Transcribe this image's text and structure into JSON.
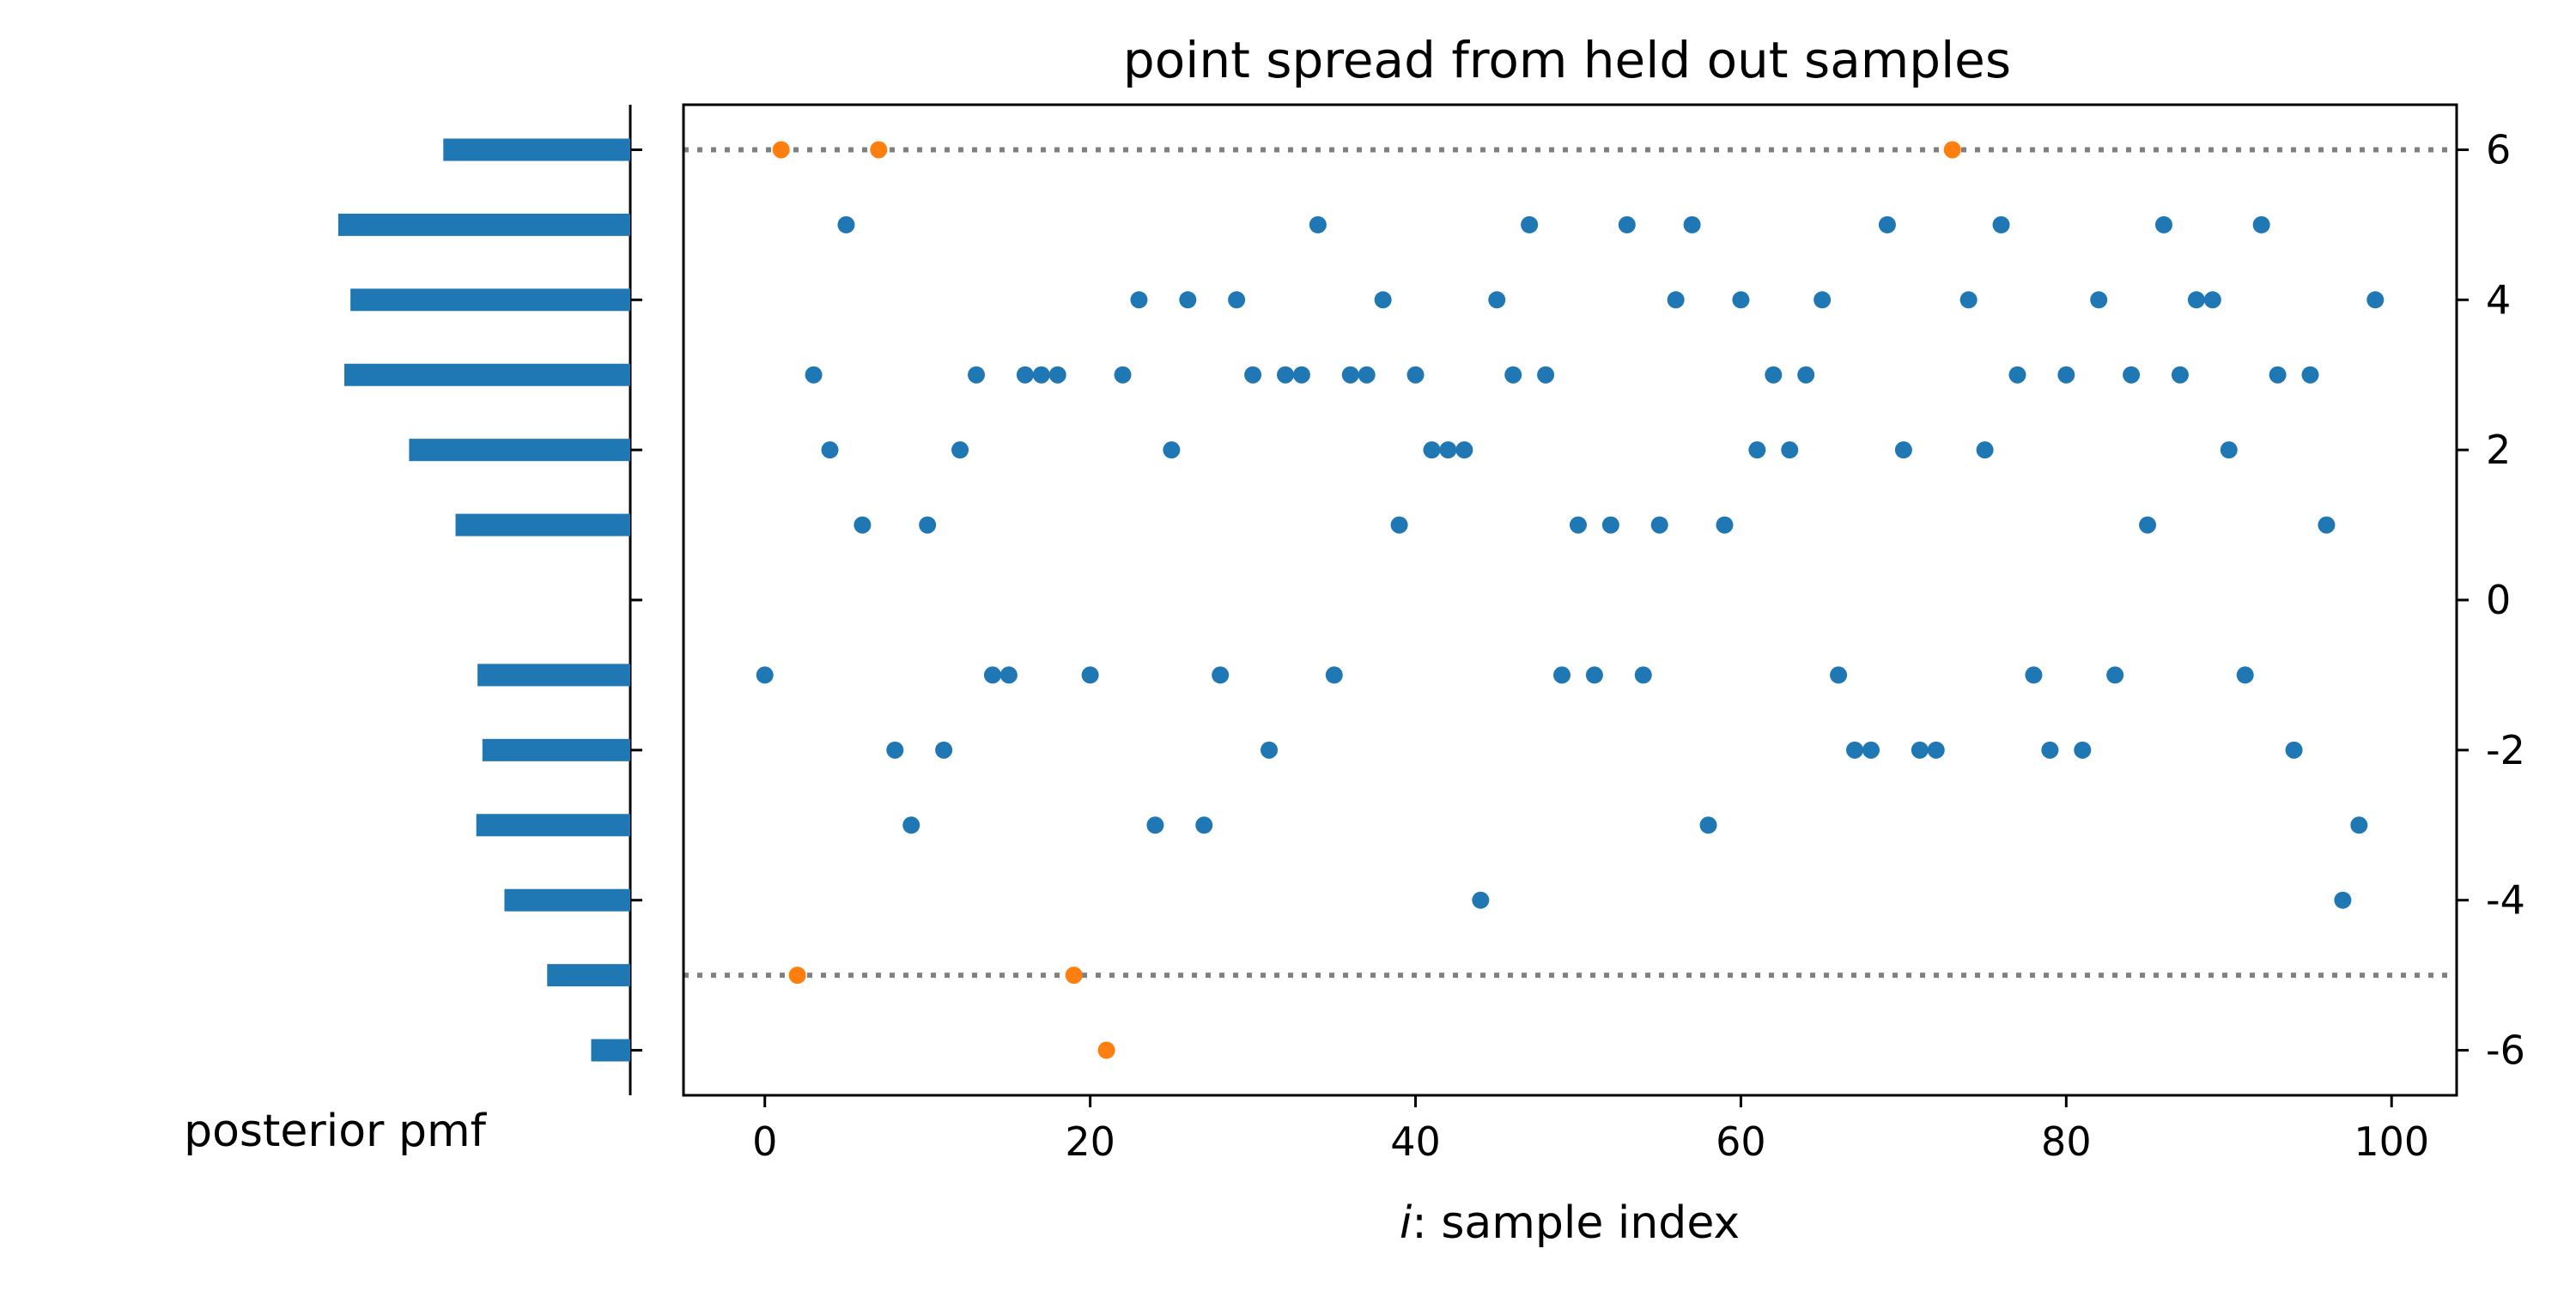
{
  "chart_data": [
    {
      "type": "bar",
      "orientation": "horizontal",
      "xlabel": "posterior pmf",
      "categories": [
        -6,
        -5,
        -4,
        -3,
        -2,
        -1,
        1,
        2,
        3,
        4,
        5,
        6
      ],
      "values": [
        0.032,
        0.068,
        0.103,
        0.126,
        0.121,
        0.125,
        0.143,
        0.181,
        0.234,
        0.229,
        0.239,
        0.153
      ],
      "ylim": [
        -6.6,
        6.6
      ],
      "grid": false,
      "colors": {
        "bar": "#1f77b4"
      }
    },
    {
      "type": "scatter",
      "title": "point spread from held out samples",
      "xlabel_italic": "i",
      "xlabel_rest": ": sample index",
      "xlim": [
        -5,
        104
      ],
      "ylim": [
        -6.6,
        6.6
      ],
      "xticks": [
        0,
        20,
        40,
        60,
        80,
        100
      ],
      "yticks": [
        -6,
        -4,
        -2,
        0,
        2,
        4,
        6
      ],
      "ytick_labels": [
        "-6",
        "-4",
        "-2",
        "0",
        "2",
        "4",
        "6"
      ],
      "y_axis_side": "right",
      "grid": false,
      "reference_lines": [
        6,
        -5
      ],
      "x": [
        0,
        1,
        2,
        3,
        4,
        5,
        6,
        7,
        8,
        9,
        10,
        11,
        12,
        13,
        14,
        15,
        16,
        17,
        18,
        19,
        20,
        21,
        22,
        23,
        24,
        25,
        26,
        27,
        28,
        29,
        30,
        31,
        32,
        33,
        34,
        35,
        36,
        37,
        38,
        39,
        40,
        41,
        42,
        43,
        44,
        45,
        46,
        47,
        48,
        49,
        50,
        51,
        52,
        53,
        54,
        55,
        56,
        57,
        58,
        59,
        60,
        61,
        62,
        63,
        64,
        65,
        66,
        67,
        68,
        69,
        70,
        71,
        72,
        73,
        74,
        75,
        76,
        77,
        78,
        79,
        80,
        81,
        82,
        83,
        84,
        85,
        86,
        87,
        88,
        89,
        90,
        91,
        92,
        93,
        94,
        95,
        96,
        97,
        98,
        99
      ],
      "y": [
        -1,
        6,
        -5,
        3,
        2,
        5,
        1,
        6,
        -2,
        -3,
        1,
        -2,
        2,
        3,
        -1,
        -1,
        3,
        3,
        3,
        -5,
        -1,
        -6,
        3,
        4,
        -3,
        2,
        4,
        -3,
        -1,
        4,
        3,
        -2,
        3,
        3,
        5,
        -1,
        3,
        3,
        4,
        1,
        3,
        2,
        2,
        2,
        -4,
        4,
        3,
        5,
        3,
        -1,
        1,
        -1,
        1,
        5,
        -1,
        1,
        4,
        5,
        -3,
        1,
        4,
        2,
        3,
        2,
        3,
        4,
        -1,
        -2,
        -2,
        5,
        2,
        -2,
        -2,
        6,
        4,
        2,
        5,
        3,
        -1,
        -2,
        3,
        -2,
        4,
        -1,
        3,
        1,
        5,
        3,
        4,
        4,
        2,
        -1,
        5,
        3,
        -2,
        3,
        1,
        -4,
        -3,
        4
      ],
      "colors": {
        "inside": "#1f77b4",
        "outside": "#ff7f0e",
        "reference_line": "#808080"
      }
    }
  ]
}
